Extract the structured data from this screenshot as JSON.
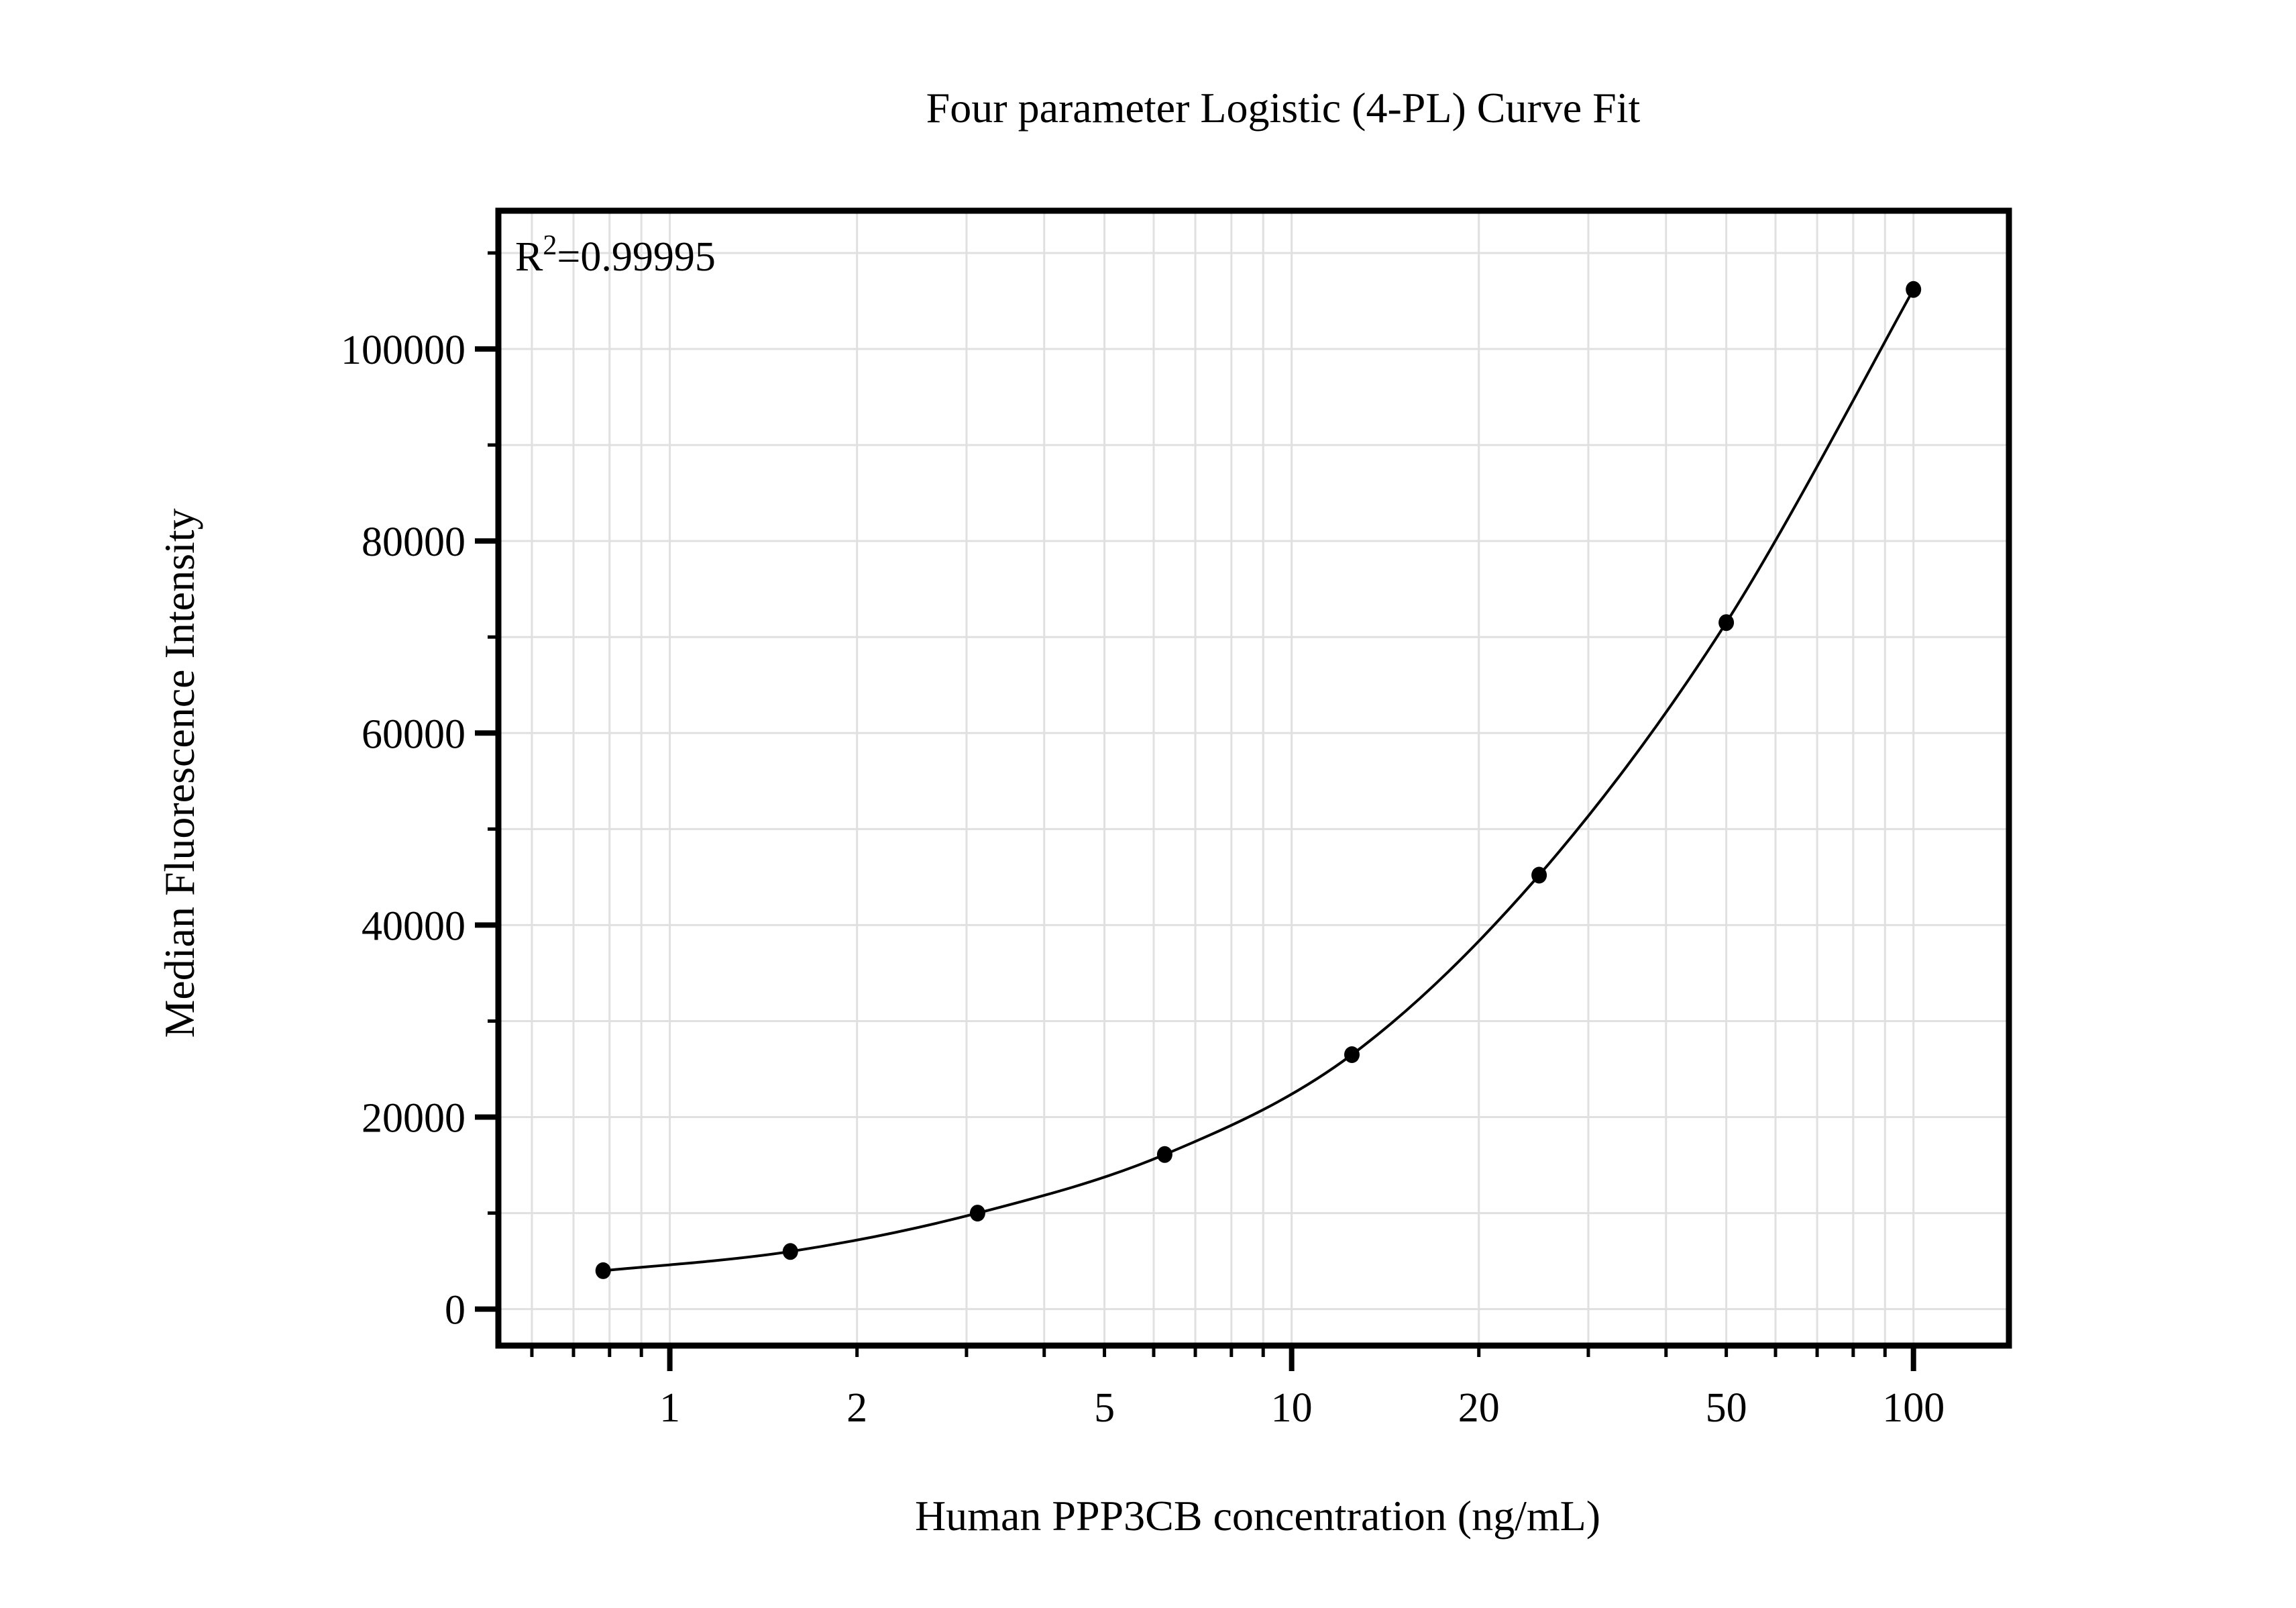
{
  "chart_data": {
    "type": "scatter",
    "title": "Four parameter Logistic (4-PL) Curve Fit",
    "annotation": {
      "base": "R",
      "sup": "2",
      "rest": "=0.99995"
    },
    "x_axis": {
      "title": "Human PPP3CB concentration (ng/mL)",
      "scale": "log",
      "range": [
        0.53,
        142.4
      ],
      "major_ticks": [
        1,
        10,
        100
      ],
      "minor_ticks": [
        0.6,
        0.7,
        0.8,
        0.9,
        2,
        3,
        4,
        5,
        6,
        7,
        8,
        9,
        20,
        30,
        40,
        50,
        60,
        70,
        80,
        90
      ],
      "tick_labels": [
        {
          "value": 1,
          "label": "1"
        },
        {
          "value": 2,
          "label": "2"
        },
        {
          "value": 5,
          "label": "5"
        },
        {
          "value": 10,
          "label": "10"
        },
        {
          "value": 20,
          "label": "20"
        },
        {
          "value": 50,
          "label": "50"
        },
        {
          "value": 100,
          "label": "100"
        }
      ]
    },
    "y_axis": {
      "title": "Median Fluorescence Intensity",
      "scale": "linear",
      "range": [
        -3800,
        114400
      ],
      "major_ticks": [
        0,
        20000,
        40000,
        60000,
        80000,
        100000
      ],
      "minor_ticks": [
        10000,
        30000,
        50000,
        70000,
        90000,
        110000
      ],
      "tick_labels": [
        {
          "value": 0,
          "label": "0"
        },
        {
          "value": 20000,
          "label": "20000"
        },
        {
          "value": 40000,
          "label": "40000"
        },
        {
          "value": 60000,
          "label": "60000"
        },
        {
          "value": 80000,
          "label": "80000"
        },
        {
          "value": 100000,
          "label": "100000"
        }
      ],
      "grid_values": [
        0,
        10000,
        20000,
        30000,
        40000,
        50000,
        60000,
        70000,
        80000,
        90000,
        100000,
        110000
      ]
    },
    "series": [
      {
        "name": "4-PL fit",
        "marker": "filled-circle",
        "x": [
          0.78125,
          1.5625,
          3.125,
          6.25,
          12.5,
          25,
          50,
          100
        ],
        "y": [
          4000,
          6000,
          10000,
          16100,
          26500,
          45200,
          71500,
          106200
        ]
      }
    ],
    "legend": "none",
    "grid": "on",
    "colors": {
      "background": "#ffffff",
      "axis": "#000000",
      "grid": "#e0e0e0",
      "curve": "#000000",
      "point": "#000000",
      "text": "#000000"
    }
  }
}
